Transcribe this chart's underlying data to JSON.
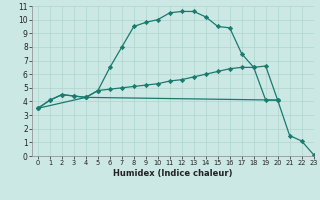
{
  "xlabel": "Humidex (Indice chaleur)",
  "bg_color": "#cce8e4",
  "line_color": "#1a7a6e",
  "grid_color": "#b0d4ce",
  "xlim": [
    -0.5,
    23
  ],
  "ylim": [
    0,
    11
  ],
  "xticks": [
    0,
    1,
    2,
    3,
    4,
    5,
    6,
    7,
    8,
    9,
    10,
    11,
    12,
    13,
    14,
    15,
    16,
    17,
    18,
    19,
    20,
    21,
    22,
    23
  ],
  "yticks": [
    0,
    1,
    2,
    3,
    4,
    5,
    6,
    7,
    8,
    9,
    10,
    11
  ],
  "line1_x": [
    0,
    1,
    2,
    3,
    4,
    5,
    6,
    7,
    8,
    9,
    10,
    11,
    12,
    13,
    14,
    15,
    16,
    17,
    18,
    19,
    20
  ],
  "line1_y": [
    3.5,
    4.1,
    4.5,
    4.4,
    4.3,
    4.8,
    6.5,
    8.0,
    9.5,
    9.8,
    10.0,
    10.5,
    10.6,
    10.6,
    10.2,
    9.5,
    9.4,
    7.5,
    6.5,
    4.1,
    4.1
  ],
  "line2_x": [
    0,
    1,
    2,
    3,
    4,
    5,
    6,
    7,
    8,
    9,
    10,
    11,
    12,
    13,
    14,
    15,
    16,
    17,
    18,
    19,
    20
  ],
  "line2_y": [
    3.5,
    4.1,
    4.5,
    4.4,
    4.3,
    4.8,
    4.9,
    5.0,
    5.1,
    5.2,
    5.3,
    5.5,
    5.6,
    5.8,
    6.0,
    6.2,
    6.4,
    6.5,
    6.5,
    6.6,
    4.1
  ],
  "line3_x": [
    0,
    4,
    20,
    21,
    22,
    23
  ],
  "line3_y": [
    3.5,
    4.3,
    4.1,
    1.5,
    1.1,
    0.1
  ]
}
